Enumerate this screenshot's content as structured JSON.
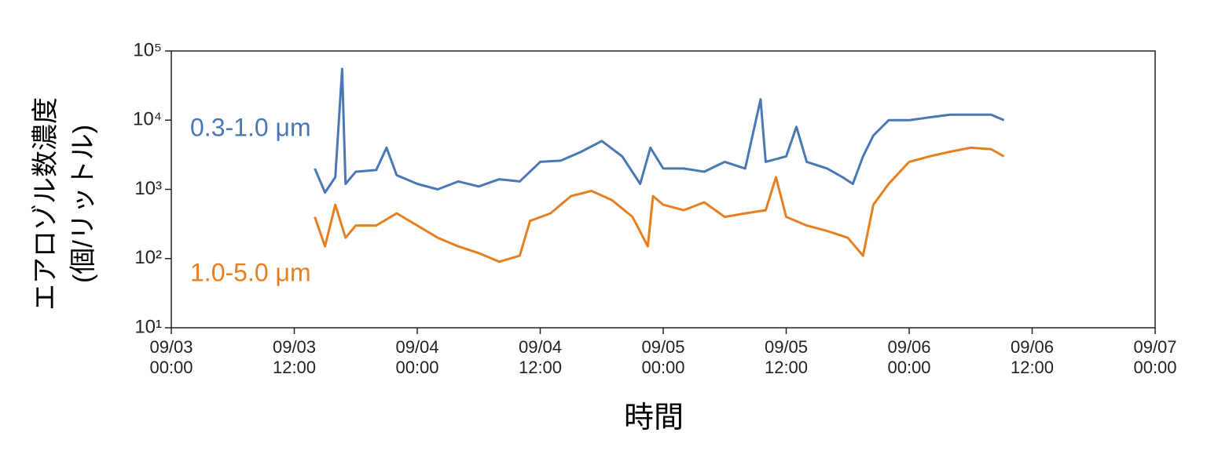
{
  "chart_data": {
    "type": "line",
    "ylabel": [
      "エアロゾル数濃度",
      "(個/リットル)"
    ],
    "xlabel": "時間",
    "log_y": true,
    "xlim": [
      "09/03 00:00",
      "09/07 00:00"
    ],
    "xticks": [
      "09/03 00:00",
      "09/03 12:00",
      "09/04 00:00",
      "09/04 12:00",
      "09/05 00:00",
      "09/05 12:00",
      "09/06 00:00",
      "09/06 12:00",
      "09/07 00:00"
    ],
    "ylim": [
      10,
      100000
    ],
    "yticks": [
      {
        "value": 10,
        "label": "10¹"
      },
      {
        "value": 100,
        "label": "10²"
      },
      {
        "value": 1000,
        "label": "10³"
      },
      {
        "value": 10000,
        "label": "10⁴"
      },
      {
        "value": 100000,
        "label": "10⁵"
      }
    ],
    "series": [
      {
        "name": "0.3-1.0 μm",
        "color": "#4a78b5",
        "x": [
          "09/03 14:00",
          "09/03 15:00",
          "09/03 16:00",
          "09/03 16:40",
          "09/03 17:00",
          "09/03 18:00",
          "09/03 20:00",
          "09/03 21:00",
          "09/03 22:00",
          "09/04 00:00",
          "09/04 02:00",
          "09/04 04:00",
          "09/04 06:00",
          "09/04 08:00",
          "09/04 10:00",
          "09/04 12:00",
          "09/04 14:00",
          "09/04 16:00",
          "09/04 18:00",
          "09/04 20:00",
          "09/04 21:45",
          "09/04 22:45",
          "09/05 00:00",
          "09/05 02:00",
          "09/05 04:00",
          "09/05 06:00",
          "09/05 08:00",
          "09/05 09:30",
          "09/05 10:00",
          "09/05 12:00",
          "09/05 13:00",
          "09/05 14:00",
          "09/05 16:00",
          "09/05 17:30",
          "09/05 18:30",
          "09/05 19:30",
          "09/05 20:30",
          "09/05 22:00",
          "09/06 00:00",
          "09/06 02:00",
          "09/06 04:00",
          "09/06 06:00",
          "09/06 08:00",
          "09/06 09:15"
        ],
        "values": [
          2000,
          900,
          1500,
          55000,
          1200,
          1800,
          1900,
          4000,
          1600,
          1200,
          1000,
          1300,
          1100,
          1400,
          1300,
          2500,
          2600,
          3500,
          5000,
          3000,
          1200,
          4000,
          2000,
          2000,
          1800,
          2500,
          2000,
          20000,
          2500,
          3000,
          8000,
          2500,
          2000,
          1500,
          1200,
          3000,
          6000,
          10000,
          10000,
          11000,
          12000,
          12000,
          12000,
          10000
        ]
      },
      {
        "name": "1.0-5.0 μm",
        "color": "#e6801f",
        "x": [
          "09/03 14:00",
          "09/03 15:00",
          "09/03 16:00",
          "09/03 17:00",
          "09/03 18:00",
          "09/03 20:00",
          "09/03 22:00",
          "09/04 00:00",
          "09/04 02:00",
          "09/04 04:00",
          "09/04 06:00",
          "09/04 08:00",
          "09/04 10:00",
          "09/04 11:00",
          "09/04 13:00",
          "09/04 15:00",
          "09/04 17:00",
          "09/04 19:00",
          "09/04 21:00",
          "09/04 22:30",
          "09/04 23:00",
          "09/05 00:00",
          "09/05 02:00",
          "09/05 04:00",
          "09/05 06:00",
          "09/05 08:00",
          "09/05 10:00",
          "09/05 11:00",
          "09/05 12:00",
          "09/05 14:00",
          "09/05 16:00",
          "09/05 18:00",
          "09/05 19:30",
          "09/05 20:30",
          "09/05 22:00",
          "09/06 00:00",
          "09/06 02:00",
          "09/06 04:00",
          "09/06 06:00",
          "09/06 08:00",
          "09/06 09:15"
        ],
        "values": [
          400,
          150,
          600,
          200,
          300,
          300,
          450,
          300,
          200,
          150,
          120,
          90,
          110,
          350,
          450,
          800,
          950,
          700,
          400,
          150,
          800,
          600,
          500,
          650,
          400,
          450,
          500,
          1500,
          400,
          300,
          250,
          200,
          110,
          600,
          1200,
          2500,
          3000,
          3500,
          4000,
          3800,
          3000
        ]
      }
    ]
  }
}
